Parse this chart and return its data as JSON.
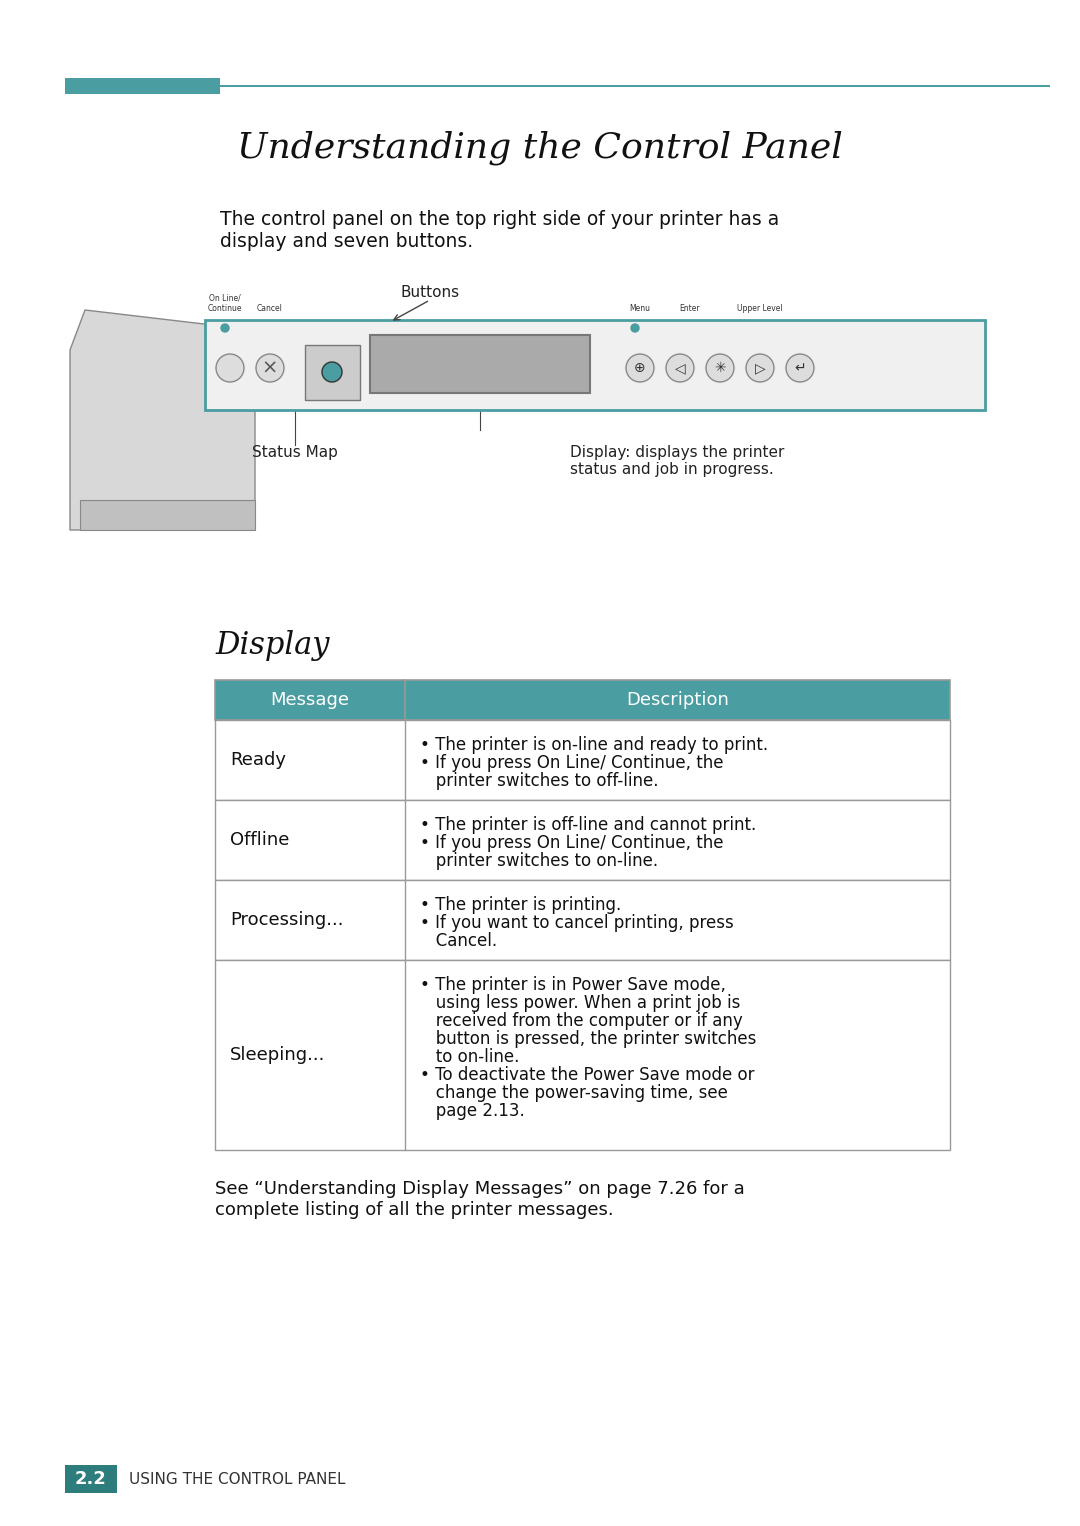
{
  "title": "Understanding the Control Panel",
  "header_line_color": "#4a9da0",
  "header_rect_color": "#4a9da0",
  "bg_color": "#ffffff",
  "intro_text": "The control panel on the top right side of your printer has a\ndisplay and seven buttons.",
  "display_section_title": "Display",
  "table_header_bg": "#4a9da0",
  "table_header_text_color": "#ffffff",
  "table_border_color": "#999999",
  "table_col1_header": "Message",
  "table_col2_header": "Description",
  "table_rows": [
    {
      "message": "Ready",
      "description_lines": [
        "• The printer is on-line and ready to print.",
        "• If you press On Line/ Continue, the",
        "   printer switches to off-line."
      ]
    },
    {
      "message": "Offline",
      "description_lines": [
        "• The printer is off-line and cannot print.",
        "• If you press On Line/ Continue, the",
        "   printer switches to on-line."
      ]
    },
    {
      "message": "Processing...",
      "description_lines": [
        "• The printer is printing.",
        "• If you want to cancel printing, press",
        "   Cancel."
      ]
    },
    {
      "message": "Sleeping...",
      "description_lines": [
        "• The printer is in Power Save mode,",
        "   using less power. When a print job is",
        "   received from the computer or if any",
        "   button is pressed, the printer switches",
        "   to on-line.",
        "• To deactivate the Power Save mode or",
        "   change the power-saving time, see",
        "   page 2.13."
      ]
    }
  ],
  "footer_text": "See “Understanding Display Messages” on page 7.26 for a\ncomplete listing of all the printer messages.",
  "page_label_bg": "#2e7d7d",
  "page_label_text": "2.2",
  "page_label_caption": "USING THE CONTROL PANEL",
  "buttons_label": "Buttons",
  "status_map_label": "Status Map",
  "display_label": "Display: displays the printer\nstatus and job in progress."
}
